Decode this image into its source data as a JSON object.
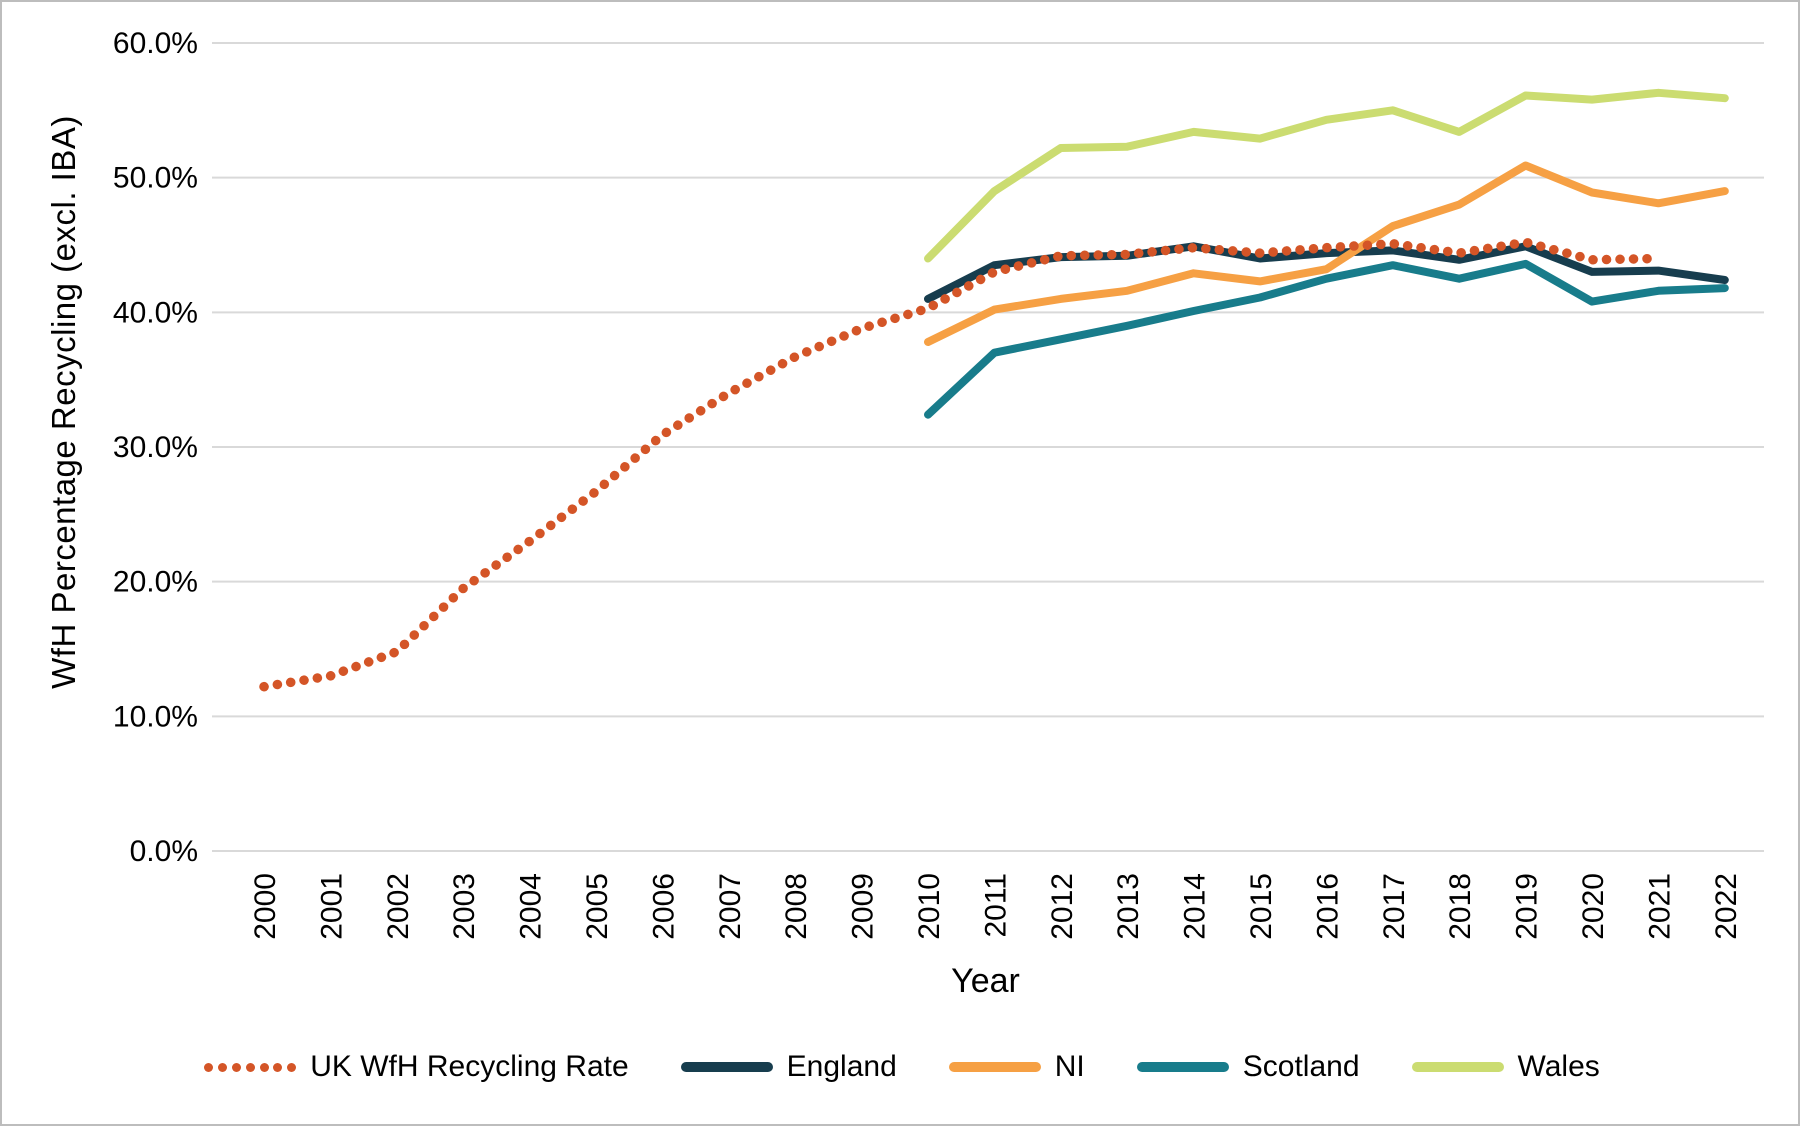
{
  "chart_data": {
    "type": "line",
    "title": "",
    "xlabel": "Year",
    "ylabel": "WfH Percentage Recycling (excl. IBA)",
    "x": [
      2000,
      2001,
      2002,
      2003,
      2004,
      2005,
      2006,
      2007,
      2008,
      2009,
      2010,
      2011,
      2012,
      2013,
      2014,
      2015,
      2016,
      2017,
      2018,
      2019,
      2020,
      2021,
      2022
    ],
    "yticks": [
      "0.0%",
      "10.0%",
      "20.0%",
      "30.0%",
      "40.0%",
      "50.0%",
      "60.0%"
    ],
    "ylim": [
      0,
      60
    ],
    "grid": "horizontal",
    "legend_position": "bottom",
    "series": [
      {
        "name": "UK WfH Recycling Rate",
        "style": "dotted",
        "color": "#d45527",
        "values": [
          12.2,
          13.0,
          14.8,
          19.5,
          23.0,
          26.7,
          30.9,
          34.0,
          36.7,
          38.8,
          40.3,
          43.0,
          44.2,
          44.3,
          44.8,
          44.4,
          44.8,
          45.1,
          44.4,
          45.2,
          43.9,
          44.0,
          null
        ]
      },
      {
        "name": "England",
        "style": "solid",
        "color": "#173d4e",
        "values": [
          null,
          null,
          null,
          null,
          null,
          null,
          null,
          null,
          null,
          null,
          41.0,
          43.5,
          44.1,
          44.2,
          44.9,
          44.0,
          44.4,
          44.6,
          43.9,
          44.9,
          43.0,
          43.1,
          42.4
        ]
      },
      {
        "name": "NI",
        "style": "solid",
        "color": "#f6a044",
        "values": [
          null,
          null,
          null,
          null,
          null,
          null,
          null,
          null,
          null,
          null,
          37.8,
          40.2,
          41.0,
          41.6,
          42.9,
          42.3,
          43.2,
          46.4,
          48.0,
          50.9,
          48.9,
          48.1,
          49.0
        ]
      },
      {
        "name": "Scotland",
        "style": "solid",
        "color": "#187c8b",
        "values": [
          null,
          null,
          null,
          null,
          null,
          null,
          null,
          null,
          null,
          null,
          32.4,
          37.0,
          38.0,
          39.0,
          40.1,
          41.1,
          42.5,
          43.5,
          42.5,
          43.6,
          40.8,
          41.6,
          41.8
        ]
      },
      {
        "name": "Wales",
        "style": "solid",
        "color": "#cbdc71",
        "values": [
          null,
          null,
          null,
          null,
          null,
          null,
          null,
          null,
          null,
          null,
          44.0,
          49.0,
          52.2,
          52.3,
          53.4,
          52.9,
          54.3,
          55.0,
          53.4,
          56.1,
          55.8,
          56.3,
          55.9
        ]
      }
    ]
  },
  "colors": {
    "gridline": "#d9d9d9",
    "text": "#000000",
    "border": "#bdbdbd",
    "background": "#ffffff"
  }
}
